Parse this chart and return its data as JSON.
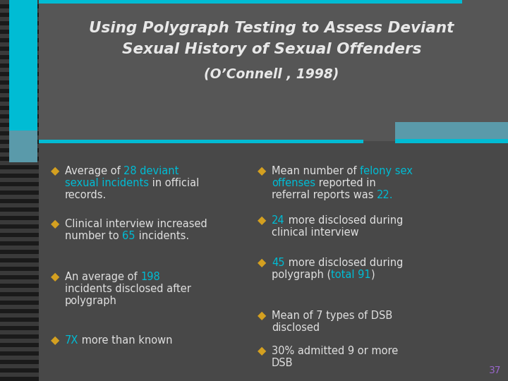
{
  "title_line1": "Using Polygraph Testing to Assess Deviant",
  "title_line2": "Sexual History of Sexual Offenders",
  "title_line3": "(O’Connell , 1998)",
  "bg_color": "#484848",
  "title_bg_color": "#565656",
  "title_color": "#e8e8e8",
  "text_color": "#e0e0e0",
  "highlight_color": "#00bcd4",
  "bullet_color": "#d4a020",
  "page_number": "37",
  "page_number_color": "#9966cc",
  "teal_color": "#00bcd4",
  "teal_dark": "#5a9aaa",
  "stripe_dark": "#1a1a1a",
  "stripe_light": "#3a3a3a",
  "left_bullets": [
    {
      "lines": [
        [
          {
            "text": "Average of ",
            "color": "#e0e0e0"
          },
          {
            "text": "28 deviant",
            "color": "#00bcd4"
          }
        ],
        [
          {
            "text": "sexual incidents",
            "color": "#00bcd4"
          },
          {
            "text": " in official",
            "color": "#e0e0e0"
          }
        ],
        [
          {
            "text": "records.",
            "color": "#e0e0e0"
          }
        ]
      ]
    },
    {
      "lines": [
        [
          {
            "text": "Clinical interview increased",
            "color": "#e0e0e0"
          }
        ],
        [
          {
            "text": "number to ",
            "color": "#e0e0e0"
          },
          {
            "text": "65",
            "color": "#00bcd4"
          },
          {
            "text": " incidents.",
            "color": "#e0e0e0"
          }
        ]
      ]
    },
    {
      "lines": [
        [
          {
            "text": "An average of ",
            "color": "#e0e0e0"
          },
          {
            "text": "198",
            "color": "#00bcd4"
          }
        ],
        [
          {
            "text": "incidents disclosed after",
            "color": "#e0e0e0"
          }
        ],
        [
          {
            "text": "polygraph",
            "color": "#e0e0e0"
          }
        ]
      ]
    },
    {
      "lines": [
        [
          {
            "text": "7X",
            "color": "#00bcd4"
          },
          {
            "text": " more than known",
            "color": "#e0e0e0"
          }
        ]
      ]
    }
  ],
  "right_bullets": [
    {
      "lines": [
        [
          {
            "text": "Mean number of ",
            "color": "#e0e0e0"
          },
          {
            "text": "felony sex",
            "color": "#00bcd4"
          }
        ],
        [
          {
            "text": "offenses",
            "color": "#00bcd4"
          },
          {
            "text": " reported in",
            "color": "#e0e0e0"
          }
        ],
        [
          {
            "text": "referral reports was ",
            "color": "#e0e0e0"
          },
          {
            "text": "22.",
            "color": "#00bcd4"
          }
        ]
      ]
    },
    {
      "lines": [
        [
          {
            "text": "24",
            "color": "#00bcd4"
          },
          {
            "text": " more disclosed during",
            "color": "#e0e0e0"
          }
        ],
        [
          {
            "text": "clinical interview",
            "color": "#e0e0e0"
          }
        ]
      ]
    },
    {
      "lines": [
        [
          {
            "text": "45",
            "color": "#00bcd4"
          },
          {
            "text": " more disclosed during",
            "color": "#e0e0e0"
          }
        ],
        [
          {
            "text": "polygraph (",
            "color": "#e0e0e0"
          },
          {
            "text": "total 91",
            "color": "#00bcd4"
          },
          {
            "text": ")",
            "color": "#e0e0e0"
          }
        ]
      ]
    },
    {
      "lines": [
        [
          {
            "text": "Mean of 7 types of DSB",
            "color": "#e0e0e0"
          }
        ],
        [
          {
            "text": "disclosed",
            "color": "#e0e0e0"
          }
        ]
      ]
    },
    {
      "lines": [
        [
          {
            "text": "30% admitted 9 or more",
            "color": "#e0e0e0"
          }
        ],
        [
          {
            "text": "DSB",
            "color": "#e0e0e0"
          }
        ]
      ]
    }
  ]
}
